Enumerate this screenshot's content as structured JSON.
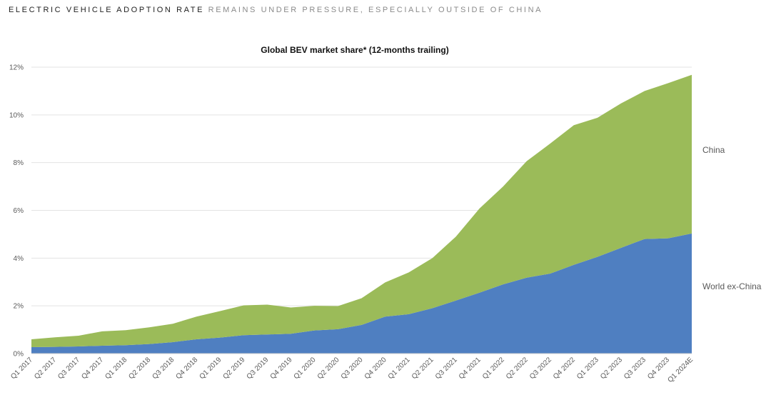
{
  "header": {
    "bold_part": "ELECTRIC VEHICLE ADOPTION RATE",
    "light_part": "REMAINS UNDER PRESSURE, ESPECIALLY OUTSIDE OF CHINA"
  },
  "chart_data": {
    "type": "area",
    "stacked": true,
    "title": "Global BEV market share* (12-months trailing)",
    "xlabel": "",
    "ylabel": "",
    "ylim": [
      0,
      12
    ],
    "yticks": [
      "0%",
      "2%",
      "4%",
      "6%",
      "8%",
      "10%",
      "12%"
    ],
    "grid": true,
    "legend": "right",
    "categories": [
      "Q1 2017",
      "Q2 2017",
      "Q3 2017",
      "Q4 2017",
      "Q1 2018",
      "Q2 2018",
      "Q3 2018",
      "Q4 2018",
      "Q1 2019",
      "Q2 2019",
      "Q3 2019",
      "Q4 2019",
      "Q1 2020",
      "Q2 2020",
      "Q3 2020",
      "Q4 2020",
      "Q1 2021",
      "Q2 2021",
      "Q3 2021",
      "Q4 2021",
      "Q1 2022",
      "Q2 2022",
      "Q3 2022",
      "Q4 2022",
      "Q1 2023",
      "Q2 2023",
      "Q3 2023",
      "Q4 2023",
      "Q1 2024E"
    ],
    "series": [
      {
        "name": "World ex-China",
        "color": "#4f7fc1",
        "values": [
          0.27,
          0.28,
          0.3,
          0.33,
          0.35,
          0.4,
          0.48,
          0.6,
          0.67,
          0.77,
          0.8,
          0.83,
          0.97,
          1.02,
          1.2,
          1.55,
          1.65,
          1.9,
          2.22,
          2.55,
          2.9,
          3.18,
          3.35,
          3.72,
          4.05,
          4.43,
          4.8,
          4.83,
          5.03
        ]
      },
      {
        "name": "China",
        "color": "#9bbb59",
        "values": [
          0.33,
          0.4,
          0.45,
          0.6,
          0.63,
          0.7,
          0.77,
          0.95,
          1.11,
          1.25,
          1.25,
          1.1,
          1.03,
          0.97,
          1.12,
          1.43,
          1.75,
          2.1,
          2.68,
          3.53,
          4.1,
          4.88,
          5.45,
          5.85,
          5.83,
          6.05,
          6.2,
          6.5,
          6.65
        ]
      }
    ]
  }
}
